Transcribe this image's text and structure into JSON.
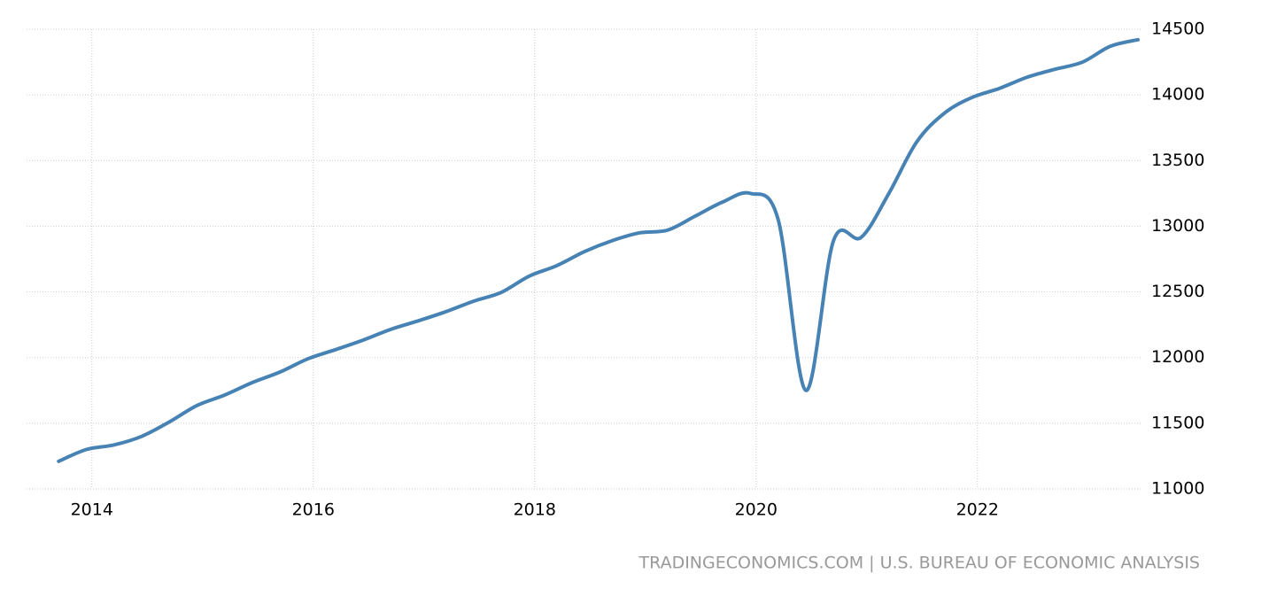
{
  "chart_data": {
    "type": "line",
    "source": "TRADINGECONOMICS.COM | U.S. BUREAU OF ECONOMIC ANALYSIS",
    "x": [
      2013.7,
      2013.95,
      2014.2,
      2014.45,
      2014.7,
      2014.95,
      2015.2,
      2015.45,
      2015.7,
      2015.95,
      2016.2,
      2016.45,
      2016.7,
      2016.95,
      2017.2,
      2017.45,
      2017.7,
      2017.95,
      2018.2,
      2018.45,
      2018.7,
      2018.95,
      2019.2,
      2019.45,
      2019.7,
      2019.95,
      2020.2,
      2020.45,
      2020.7,
      2020.95,
      2021.2,
      2021.45,
      2021.7,
      2021.95,
      2022.2,
      2022.45,
      2022.7,
      2022.95,
      2023.2,
      2023.45
    ],
    "series": [
      {
        "color": "#4682b4",
        "values": [
          11210,
          11300,
          11335,
          11400,
          11510,
          11635,
          11715,
          11810,
          11890,
          11990,
          12060,
          12133,
          12215,
          12280,
          12350,
          12430,
          12497,
          12620,
          12700,
          12807,
          12890,
          12950,
          12970,
          13077,
          13185,
          13250,
          13050,
          11750,
          12890,
          12915,
          13250,
          13640,
          13860,
          13980,
          14050,
          14135,
          14195,
          14250,
          14370,
          14420
        ]
      }
    ],
    "xlim": [
      2013.41,
      2023.49
    ],
    "xticks": [
      2014,
      2016,
      2018,
      2020,
      2022
    ],
    "ylim": [
      11000,
      14500
    ],
    "yticks": [
      11000,
      11500,
      12000,
      12500,
      13000,
      13500,
      14000,
      14500
    ],
    "grid": true
  }
}
